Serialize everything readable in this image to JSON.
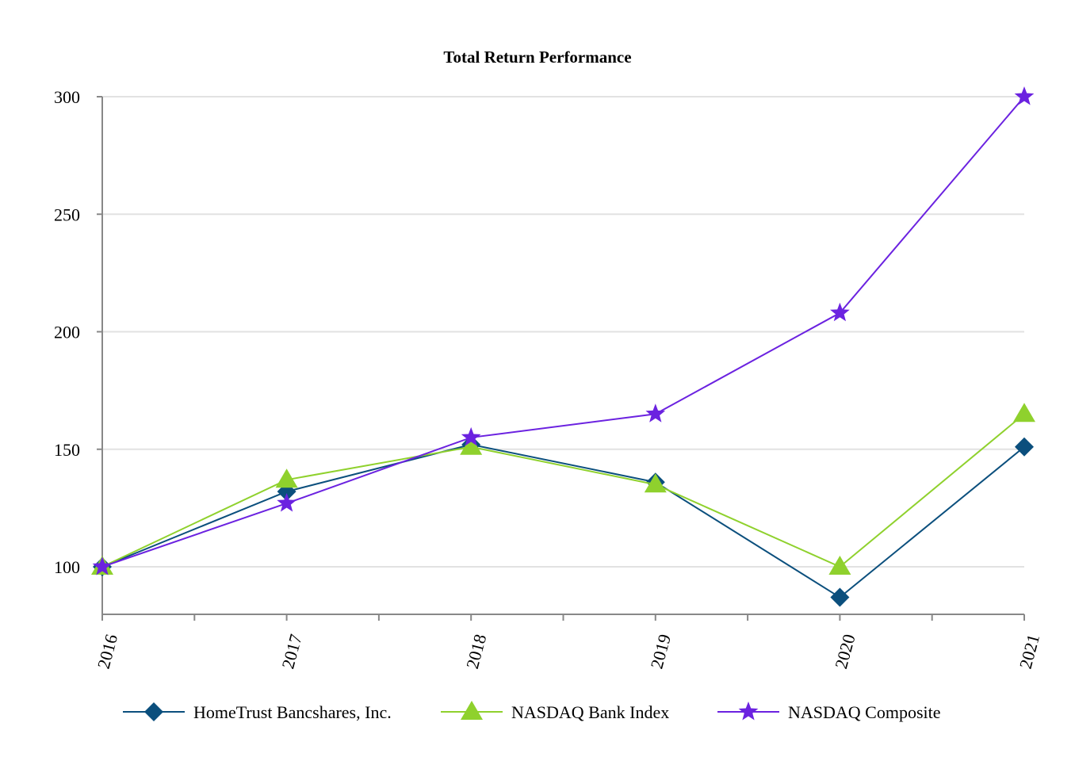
{
  "chart_data": {
    "type": "line",
    "title": "Total Return Performance",
    "xlabel": "",
    "ylabel": "",
    "categories": [
      "2016",
      "2017",
      "2018",
      "2019",
      "2020",
      "2021"
    ],
    "y_ticks": [
      "100",
      "150",
      "200",
      "250",
      "300"
    ],
    "ylim": [
      80,
      300
    ],
    "grid": true,
    "legend_position": "bottom",
    "series": [
      {
        "name": "HomeTrust Bancshares, Inc.",
        "marker": "diamond",
        "color": "#0b4f7d",
        "values": [
          100,
          132,
          152,
          136,
          87,
          151
        ]
      },
      {
        "name": "NASDAQ Bank Index",
        "marker": "triangle",
        "color": "#8fd12d",
        "values": [
          100,
          137,
          151,
          135,
          100,
          165
        ]
      },
      {
        "name": "NASDAQ Composite",
        "marker": "star",
        "color": "#6b22e0",
        "values": [
          100,
          127,
          155,
          165,
          208,
          300
        ]
      }
    ]
  }
}
